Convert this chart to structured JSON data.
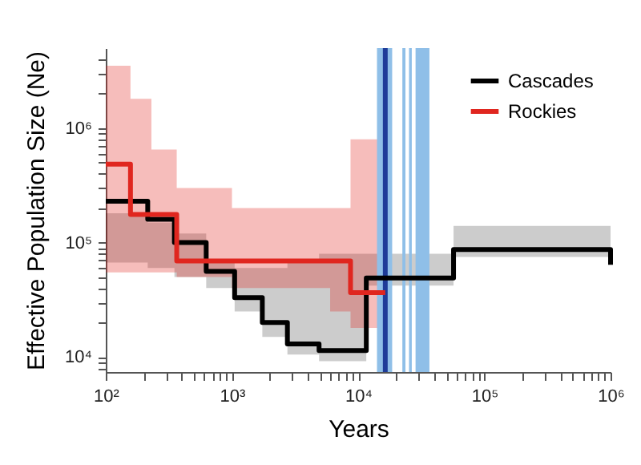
{
  "chart_data": {
    "type": "step",
    "xlabel": "Years",
    "ylabel": "Effective Population Size (Ne)",
    "log": "xy",
    "legend": "top right",
    "xlim": [
      100,
      1000000
    ],
    "ylim": [
      7400,
      5000000
    ],
    "xticks": [
      {
        "value": 100,
        "label": "10²"
      },
      {
        "value": 200,
        "label": null
      },
      {
        "value": 300,
        "label": null
      },
      {
        "value": 400,
        "label": null
      },
      {
        "value": 500,
        "label": null
      },
      {
        "value": 600,
        "label": null
      },
      {
        "value": 700,
        "label": null
      },
      {
        "value": 800,
        "label": null
      },
      {
        "value": 900,
        "label": null
      },
      {
        "value": 1000,
        "label": "10³"
      },
      {
        "value": 2000,
        "label": null
      },
      {
        "value": 3000,
        "label": null
      },
      {
        "value": 4000,
        "label": null
      },
      {
        "value": 5000,
        "label": null
      },
      {
        "value": 6000,
        "label": null
      },
      {
        "value": 7000,
        "label": null
      },
      {
        "value": 8000,
        "label": null
      },
      {
        "value": 9000,
        "label": null
      },
      {
        "value": 10000,
        "label": "10⁴"
      },
      {
        "value": 20000,
        "label": null
      },
      {
        "value": 30000,
        "label": null
      },
      {
        "value": 40000,
        "label": null
      },
      {
        "value": 50000,
        "label": null
      },
      {
        "value": 60000,
        "label": null
      },
      {
        "value": 70000,
        "label": null
      },
      {
        "value": 80000,
        "label": null
      },
      {
        "value": 90000,
        "label": null
      },
      {
        "value": 100000,
        "label": "10⁵"
      },
      {
        "value": 200000,
        "label": null
      },
      {
        "value": 300000,
        "label": null
      },
      {
        "value": 400000,
        "label": null
      },
      {
        "value": 500000,
        "label": null
      },
      {
        "value": 600000,
        "label": null
      },
      {
        "value": 700000,
        "label": null
      },
      {
        "value": 800000,
        "label": null
      },
      {
        "value": 900000,
        "label": null
      },
      {
        "value": 1000000,
        "label": "10⁶"
      }
    ],
    "yticks": [
      {
        "value": 8000,
        "label": null
      },
      {
        "value": 9000,
        "label": null
      },
      {
        "value": 10000,
        "label": "10⁴"
      },
      {
        "value": 20000,
        "label": null
      },
      {
        "value": 30000,
        "label": null
      },
      {
        "value": 40000,
        "label": null
      },
      {
        "value": 50000,
        "label": null
      },
      {
        "value": 60000,
        "label": null
      },
      {
        "value": 70000,
        "label": null
      },
      {
        "value": 80000,
        "label": null
      },
      {
        "value": 90000,
        "label": null
      },
      {
        "value": 100000,
        "label": "10⁵"
      },
      {
        "value": 200000,
        "label": null
      },
      {
        "value": 300000,
        "label": null
      },
      {
        "value": 400000,
        "label": null
      },
      {
        "value": 500000,
        "label": null
      },
      {
        "value": 600000,
        "label": null
      },
      {
        "value": 700000,
        "label": null
      },
      {
        "value": 800000,
        "label": null
      },
      {
        "value": 900000,
        "label": null
      },
      {
        "value": 1000000,
        "label": "10⁶"
      },
      {
        "value": 2000000,
        "label": null
      },
      {
        "value": 3000000,
        "label": null
      },
      {
        "value": 4000000,
        "label": null
      }
    ],
    "bands": [
      {
        "axis": "x",
        "from": 14100,
        "to": 18600,
        "color": "#8fbfe8"
      },
      {
        "axis": "x",
        "from": 22400,
        "to": 23700,
        "color": "#8fbfe8"
      },
      {
        "axis": "x",
        "from": 25300,
        "to": 26600,
        "color": "#8fbfe8"
      },
      {
        "axis": "x",
        "from": 28500,
        "to": 36700,
        "color": "#8fbfe8"
      }
    ],
    "ref_lines": [
      {
        "axis": "x",
        "value": 16400,
        "color": "#1f3c99"
      }
    ],
    "series": [
      {
        "name": "Cascades",
        "color": "#000000",
        "x": [
          100,
          215,
          350,
          625,
          1050,
          1740,
          2750,
          4900,
          11600,
          57000,
          940000,
          1000000
        ],
        "values": [
          230000,
          160000,
          100000,
          56000,
          33000,
          20000,
          13000,
          11400,
          49000,
          87000,
          87000,
          64000
        ],
        "lower": [
          67000,
          60000,
          50000,
          40000,
          25000,
          15000,
          10500,
          9200,
          42000,
          75000,
          75000,
          60000
        ],
        "upper": [
          180000,
          150000,
          120000,
          70000,
          60000,
          60000,
          70000,
          80000,
          80000,
          140000,
          140000,
          120000
        ]
      },
      {
        "name": "Rockies",
        "color": "#e0261f",
        "x": [
          100,
          157,
          230,
          365,
          1000,
          6000,
          8700,
          16400
        ],
        "values": [
          485000,
          176000,
          176000,
          69000,
          69000,
          69000,
          36500,
          36500
        ],
        "lower": [
          55000,
          55000,
          55000,
          50000,
          40000,
          25000,
          18000,
          18000
        ],
        "upper": [
          3500000,
          1800000,
          650000,
          300000,
          200000,
          200000,
          800000,
          800000
        ]
      }
    ]
  }
}
